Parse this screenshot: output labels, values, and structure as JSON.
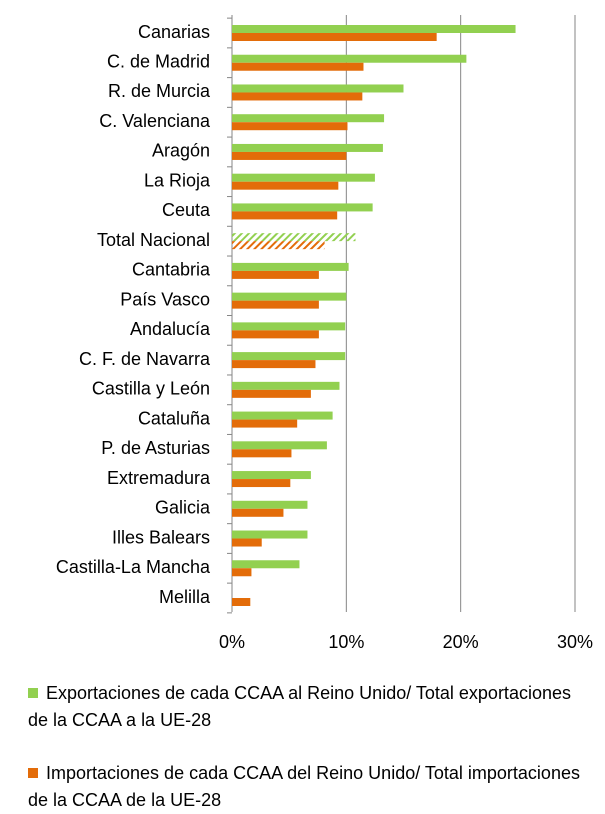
{
  "chart_data": {
    "type": "hbar",
    "categories": [
      "Canarias",
      "C. de Madrid",
      "R. de Murcia",
      "C. Valenciana",
      "Aragón",
      "La Rioja",
      "Ceuta",
      "Total Nacional",
      "Cantabria",
      "País Vasco",
      "Andalucía",
      "C. F. de Navarra",
      "Castilla y León",
      "Cataluña",
      "P. de Asturias",
      "Extremadura",
      "Galicia",
      "Illes Balears",
      "Castilla-La Mancha",
      "Melilla"
    ],
    "series": [
      {
        "name": "Exportaciones de cada CCAA al Reino Unido/ Total exportaciones de la CCAA a la UE-28",
        "color": "#92d050",
        "values": [
          24.8,
          20.5,
          15.0,
          13.3,
          13.2,
          12.5,
          12.3,
          10.8,
          10.2,
          10.0,
          9.9,
          9.9,
          9.4,
          8.8,
          8.3,
          6.9,
          6.6,
          6.6,
          5.9,
          0
        ]
      },
      {
        "name": "Importaciones de cada CCAA del Reino Unido/ Total importaciones de la CCAA de la UE-28",
        "color": "#e36c09",
        "values": [
          17.9,
          11.5,
          11.4,
          10.1,
          10.0,
          9.3,
          9.2,
          8.1,
          7.6,
          7.6,
          7.6,
          7.3,
          6.9,
          5.7,
          5.2,
          5.1,
          4.5,
          2.6,
          1.7,
          1.6
        ]
      }
    ],
    "xlim": [
      0,
      30
    ],
    "xticks": [
      {
        "value": 0,
        "label": "0%"
      },
      {
        "value": 10,
        "label": "10%"
      },
      {
        "value": 20,
        "label": "20%"
      },
      {
        "value": 30,
        "label": "30%"
      }
    ],
    "grid": true,
    "hatched": 7
  }
}
